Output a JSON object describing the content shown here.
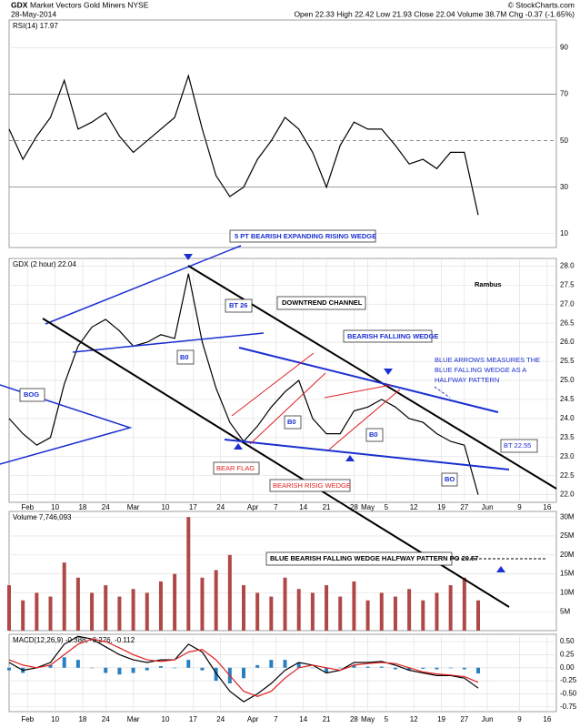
{
  "header": {
    "symbol": "GDX",
    "name": "Market Vectors Gold Miners NYSE",
    "date": "28-May-2014",
    "quote": "Open 22.33 High 22.42 Low 21.93 Close 22.04 Volume 38.7M Chg -0.37 (-1.65%)",
    "source": "© StockCharts.com"
  },
  "chart_data": [
    {
      "type": "line",
      "title": "RSI(14) 17.97",
      "xlim": [
        -4,
        115
      ],
      "ylim": [
        4,
        102
      ],
      "yticks": [
        10,
        30,
        50,
        70,
        90
      ],
      "grid": true,
      "x": [
        -4,
        -1,
        2,
        5,
        8,
        11,
        14,
        17,
        20,
        23,
        26,
        29,
        32,
        35,
        38,
        41,
        44,
        47,
        50,
        53,
        56,
        59,
        62,
        65,
        68,
        71,
        74,
        77,
        80,
        83,
        86,
        89,
        92,
        95,
        98
      ],
      "series": [
        {
          "name": "RSI(14)",
          "color": "#000000",
          "values": [
            55,
            42,
            52,
            60,
            76,
            55,
            58,
            62,
            52,
            45,
            50,
            55,
            60,
            78,
            55,
            35,
            26,
            30,
            42,
            50,
            60,
            55,
            45,
            30,
            48,
            58,
            55,
            55,
            48,
            40,
            42,
            38,
            45,
            45,
            18
          ]
        }
      ]
    },
    {
      "type": "line",
      "title": "GDX (2 hour) 22.04",
      "xlim": [
        -4,
        115
      ],
      "ylim": [
        21.8,
        28.2
      ],
      "grid": true,
      "yticks": [
        {
          "value": 22,
          "label": "22.0"
        },
        22.5,
        {
          "value": 23,
          "label": "23.0"
        },
        23.5,
        {
          "value": 24,
          "label": "24.0"
        },
        24.5,
        {
          "value": 25,
          "label": "25.0"
        },
        25.5,
        {
          "value": 26,
          "label": "26.0"
        },
        26.5,
        {
          "value": 27,
          "label": "27.0"
        },
        27.5,
        {
          "value": 28,
          "label": "28.0"
        }
      ],
      "xticks": [
        {
          "value": 0,
          "label": "Feb"
        },
        {
          "value": 6,
          "label": "10"
        },
        {
          "value": 12,
          "label": "18"
        },
        {
          "value": 17,
          "label": "24"
        },
        {
          "value": 23,
          "label": "Mar"
        },
        {
          "value": 30,
          "label": "10"
        },
        {
          "value": 36,
          "label": "17"
        },
        {
          "value": 42,
          "label": "24"
        },
        {
          "value": 49,
          "label": "Apr"
        },
        {
          "value": 54,
          "label": "7"
        },
        {
          "value": 60,
          "label": "14"
        },
        {
          "value": 65,
          "label": "21"
        },
        {
          "value": 71,
          "label": "28"
        },
        {
          "value": 74,
          "label": "May"
        },
        {
          "value": 78,
          "label": "5"
        },
        {
          "value": 84,
          "label": "12"
        },
        {
          "value": 90,
          "label": "19"
        },
        {
          "value": 95,
          "label": "27"
        },
        {
          "value": 100,
          "label": "Jun"
        },
        {
          "value": 107,
          "label": "9"
        },
        {
          "value": 113,
          "label": "16"
        }
      ],
      "x": [
        -4,
        -1,
        2,
        5,
        8,
        11,
        14,
        17,
        20,
        23,
        26,
        29,
        32,
        35,
        38,
        41,
        44,
        47,
        50,
        53,
        56,
        59,
        62,
        65,
        68,
        71,
        74,
        77,
        80,
        83,
        86,
        89,
        92,
        95,
        98
      ],
      "series": [
        {
          "name": "GDX",
          "color": "#000000",
          "values": [
            24.0,
            23.6,
            23.3,
            23.5,
            24.9,
            25.9,
            26.4,
            26.6,
            26.3,
            25.9,
            26.0,
            26.2,
            26.1,
            27.8,
            26.0,
            24.8,
            23.9,
            23.4,
            23.8,
            24.3,
            24.7,
            25.0,
            24.0,
            23.6,
            23.6,
            24.2,
            24.3,
            24.5,
            24.3,
            24.0,
            23.9,
            23.6,
            23.4,
            23.3,
            22.0
          ]
        }
      ]
    },
    {
      "type": "bar",
      "title": "Volume 7,746,093",
      "xlim": [
        -4,
        115
      ],
      "ylim": [
        0,
        31.5
      ],
      "grid": true,
      "yticks": [
        {
          "value": 5,
          "label": "5M"
        },
        {
          "value": 10,
          "label": "10M"
        },
        {
          "value": 15,
          "label": "15M"
        },
        {
          "value": 20,
          "label": "20M"
        },
        {
          "value": 25,
          "label": "25M"
        },
        {
          "value": 30,
          "label": "30M"
        }
      ],
      "x": [
        -4,
        -1,
        2,
        5,
        8,
        11,
        14,
        17,
        20,
        23,
        26,
        29,
        32,
        35,
        38,
        41,
        44,
        47,
        50,
        53,
        56,
        59,
        62,
        65,
        68,
        71,
        74,
        77,
        80,
        83,
        86,
        89,
        92,
        95,
        98
      ],
      "series": [
        {
          "name": "Volume",
          "color": "#b04848",
          "values": [
            12,
            8,
            10,
            9,
            18,
            14,
            10,
            12,
            9,
            11,
            10,
            13,
            15,
            30,
            14,
            16,
            20,
            12,
            10,
            9,
            14,
            11,
            10,
            12,
            9,
            13,
            8,
            10,
            9,
            11,
            8,
            10,
            12,
            14,
            8
          ]
        }
      ]
    },
    {
      "type": "line",
      "title": "MACD(12,26,9) -0.388, -0.276, -0.112",
      "xlim": [
        -4,
        115
      ],
      "ylim": [
        -0.84,
        0.64
      ],
      "grid": true,
      "yticks": [
        {
          "value": 0.5,
          "label": "0.50"
        },
        0.25,
        {
          "value": 0,
          "label": "0.00"
        },
        -0.25,
        {
          "value": -0.5,
          "label": "-0.50"
        },
        -0.75
      ],
      "xticks": [
        {
          "value": 0,
          "label": "Feb"
        },
        {
          "value": 6,
          "label": "10"
        },
        {
          "value": 12,
          "label": "18"
        },
        {
          "value": 17,
          "label": "24"
        },
        {
          "value": 23,
          "label": "Mar"
        },
        {
          "value": 30,
          "label": "10"
        },
        {
          "value": 36,
          "label": "17"
        },
        {
          "value": 42,
          "label": "24"
        },
        {
          "value": 49,
          "label": "Apr"
        },
        {
          "value": 54,
          "label": "7"
        },
        {
          "value": 60,
          "label": "14"
        },
        {
          "value": 65,
          "label": "21"
        },
        {
          "value": 71,
          "label": "28"
        },
        {
          "value": 74,
          "label": "May"
        },
        {
          "value": 78,
          "label": "5"
        },
        {
          "value": 84,
          "label": "12"
        },
        {
          "value": 90,
          "label": "19"
        },
        {
          "value": 95,
          "label": "27"
        },
        {
          "value": 100,
          "label": "Jun"
        },
        {
          "value": 107,
          "label": "9"
        },
        {
          "value": 113,
          "label": "16"
        }
      ],
      "x": [
        -4,
        -1,
        2,
        5,
        8,
        11,
        14,
        17,
        20,
        23,
        26,
        29,
        32,
        35,
        38,
        41,
        44,
        47,
        50,
        53,
        56,
        59,
        62,
        65,
        68,
        71,
        74,
        77,
        80,
        83,
        86,
        89,
        92,
        95,
        98
      ],
      "series": [
        {
          "name": "Histogram",
          "type": "bar",
          "color": "#2a7fc0",
          "values": [
            -0.05,
            -0.1,
            0,
            0.05,
            0.2,
            0.15,
            0,
            -0.1,
            -0.13,
            -0.1,
            -0.05,
            0.03,
            0,
            0.15,
            -0.05,
            -0.25,
            -0.3,
            -0.2,
            0.05,
            0.15,
            0.15,
            0.1,
            0,
            -0.1,
            0,
            0.05,
            0.02,
            0.02,
            -0.03,
            -0.05,
            -0.02,
            -0.03,
            -0.01,
            -0.03,
            -0.11
          ]
        },
        {
          "name": "MACD",
          "color": "#000000",
          "values": [
            0.1,
            -0.05,
            0,
            0.1,
            0.45,
            0.6,
            0.55,
            0.4,
            0.25,
            0.15,
            0.1,
            0.15,
            0.15,
            0.45,
            0.3,
            -0.1,
            -0.45,
            -0.65,
            -0.5,
            -0.3,
            -0.05,
            0.1,
            0.05,
            -0.1,
            -0.05,
            0.1,
            0.1,
            0.12,
            0.05,
            -0.05,
            -0.1,
            -0.15,
            -0.15,
            -0.2,
            -0.39
          ]
        },
        {
          "name": "Signal",
          "color": "#e02020",
          "values": [
            0.15,
            0.05,
            0,
            0.05,
            0.25,
            0.45,
            0.55,
            0.5,
            0.38,
            0.25,
            0.15,
            0.12,
            0.15,
            0.3,
            0.35,
            0.15,
            -0.15,
            -0.45,
            -0.55,
            -0.45,
            -0.2,
            0,
            0.05,
            0,
            -0.05,
            0.05,
            0.08,
            0.1,
            0.08,
            0,
            -0.08,
            -0.12,
            -0.14,
            -0.17,
            -0.28
          ]
        }
      ]
    }
  ],
  "annotations": [
    "5 PT BEARISH EXPANDING RISING WEDGE",
    "BT 26",
    "DOWNTREND CHANNEL",
    "BEARISH FALLIING WEDGE",
    "BLUE ARROWS MEASURES THE",
    "BLUE FALLING WEDGE AS A",
    "HALFWAY PATTERN",
    "BOG",
    "B0",
    "B0",
    "B0",
    "BO",
    "BEAR FLAG",
    "BEARISH RISIG WEDGE",
    "BT 22.55",
    "Rambus",
    "BLUE BEARISH FALLING WEDGE HALFWAY PATTERN PO 20.57"
  ]
}
